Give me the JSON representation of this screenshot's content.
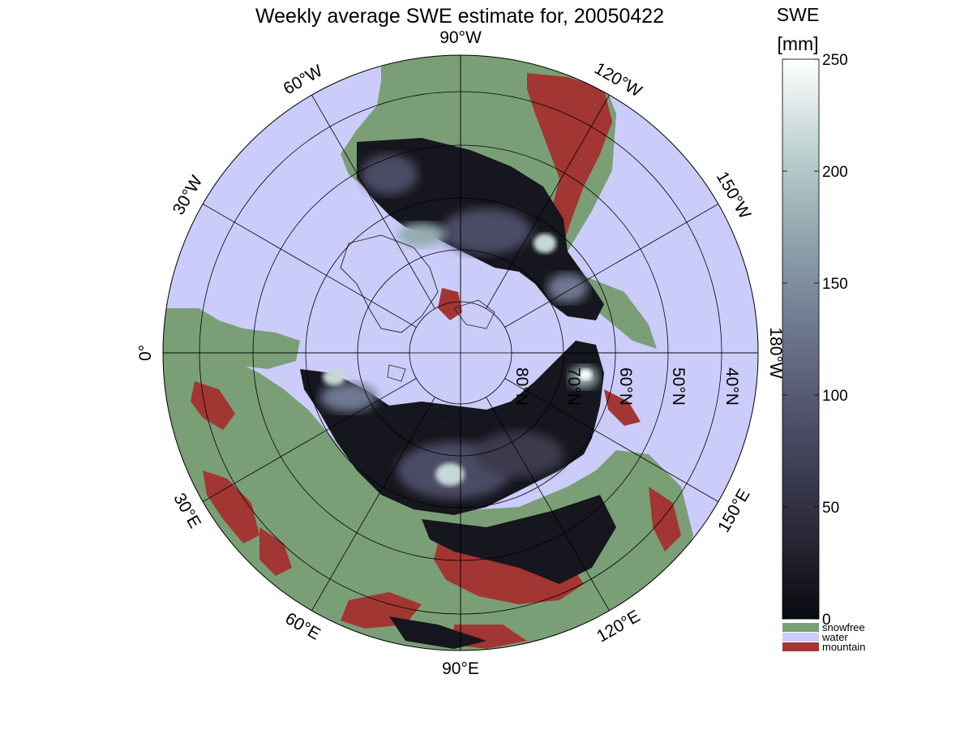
{
  "title": "Weekly average SWE estimate for, 20050422",
  "colorbar": {
    "title_line1": "SWE",
    "title_line2": "[mm]",
    "ticks": [
      0,
      50,
      100,
      150,
      200,
      250
    ],
    "range": [
      0,
      250
    ],
    "gradient": [
      "#0a0a10",
      "#2a2a3a",
      "#4c4c66",
      "#6e7890",
      "#94aab0",
      "#c6d8d6",
      "#ffffff"
    ],
    "categories": [
      {
        "label": "snowfree",
        "color": "#7a9f76"
      },
      {
        "label": "water",
        "color": "#ccccfa"
      },
      {
        "label": "mountain",
        "color": "#a23633"
      }
    ]
  },
  "map": {
    "projection": "north polar stereographic",
    "longitude_labels": [
      {
        "deg": 90,
        "label": "90°W"
      },
      {
        "deg": 120,
        "label": "120°W"
      },
      {
        "deg": 150,
        "label": "150°W"
      },
      {
        "deg": 180,
        "label": "180°W"
      },
      {
        "deg": 60,
        "label": "60°W"
      },
      {
        "deg": 30,
        "label": "30°W"
      },
      {
        "deg": 0,
        "label": "0°"
      },
      {
        "deg": -30,
        "label": "30°E"
      },
      {
        "deg": -60,
        "label": "60°E"
      },
      {
        "deg": -90,
        "label": "90°E"
      },
      {
        "deg": -120,
        "label": "120°E"
      },
      {
        "deg": -150,
        "label": "150°E"
      }
    ],
    "latitude_labels": [
      {
        "lat": 80,
        "label": "80°N"
      },
      {
        "lat": 70,
        "label": "70°N"
      },
      {
        "lat": 60,
        "label": "60°N"
      },
      {
        "lat": 50,
        "label": "50°N"
      },
      {
        "lat": 40,
        "label": "40°N"
      }
    ],
    "colors": {
      "water": "#ccccfa",
      "snowfree": "#7a9f76",
      "mountain": "#a23633",
      "snow_dark": "#16161e",
      "snow_mid": "#4c4c66",
      "snow_bright": "#c6d8d6"
    }
  }
}
